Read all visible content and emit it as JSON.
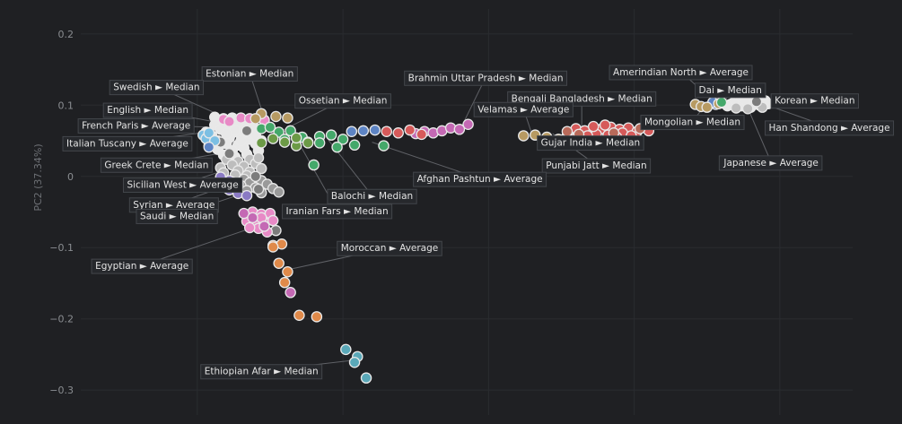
{
  "chart_data": {
    "type": "scatter",
    "ylabel": "PC2 (37.34%)",
    "ylim": [
      -0.335,
      0.235
    ],
    "xlim": [
      -0.14,
      0.125
    ],
    "grid": true,
    "y_ticks": [
      {
        "value": 0.2,
        "label": "0.2"
      },
      {
        "value": 0.1,
        "label": "0.1"
      },
      {
        "value": 0,
        "label": "0"
      },
      {
        "value": -0.1,
        "label": "−0.1"
      },
      {
        "value": -0.2,
        "label": "−0.2"
      },
      {
        "value": -0.3,
        "label": "−0.3"
      }
    ],
    "x_grid": [
      -0.1,
      -0.05,
      0,
      0.05,
      0.1
    ],
    "colors": {
      "background": "#1f2023",
      "grid": "#2a2c30",
      "white": "#e8e8e8",
      "light_gray": "#bdbdbd",
      "gray": "#9a9a9a",
      "dark_gray": "#7c7c7c",
      "pink": "#e88ac6",
      "magenta": "#c469b4",
      "purple": "#8a7ac4",
      "blue": "#5d84c4",
      "light_blue": "#7cbfe3",
      "teal": "#5aa8b8",
      "green": "#44a86a",
      "olive_green": "#6c9a46",
      "tan": "#b79a62",
      "orange": "#e08a4a",
      "red": "#d65a5a",
      "brown": "#b86a5a"
    },
    "clusters": [
      {
        "color": "white",
        "points": [
          [
            -0.094,
            0.083
          ],
          [
            -0.091,
            0.081
          ],
          [
            -0.088,
            0.082
          ],
          [
            -0.085,
            0.08
          ],
          [
            -0.091,
            0.076
          ],
          [
            -0.087,
            0.077
          ],
          [
            -0.094,
            0.072
          ],
          [
            -0.089,
            0.07
          ],
          [
            -0.083,
            0.078
          ],
          [
            -0.086,
            0.073
          ],
          [
            -0.092,
            0.066
          ],
          [
            -0.088,
            0.061
          ],
          [
            -0.095,
            0.057
          ],
          [
            -0.093,
            0.05
          ],
          [
            -0.089,
            0.054
          ],
          [
            -0.085,
            0.058
          ],
          [
            -0.082,
            0.052
          ],
          [
            -0.09,
            0.046
          ],
          [
            -0.086,
            0.044
          ],
          [
            -0.093,
            0.038
          ],
          [
            -0.088,
            0.036
          ],
          [
            -0.084,
            0.04
          ],
          [
            -0.08,
            0.046
          ],
          [
            -0.091,
            0.03
          ],
          [
            -0.087,
            0.027
          ],
          [
            -0.083,
            0.031
          ],
          [
            -0.079,
            0.036
          ],
          [
            -0.096,
            0.043
          ],
          [
            -0.097,
            0.062
          ],
          [
            -0.081,
            0.072
          ],
          [
            -0.087,
            0.065
          ],
          [
            -0.084,
            0.065
          ],
          [
            -0.09,
            0.06
          ],
          [
            -0.092,
            0.045
          ],
          [
            -0.085,
            0.05
          ],
          [
            -0.082,
            0.06
          ],
          [
            -0.08,
            0.058
          ],
          [
            -0.078,
            0.05
          ]
        ]
      },
      {
        "color": "light_gray",
        "points": [
          [
            -0.09,
            0.024
          ],
          [
            -0.086,
            0.021
          ],
          [
            -0.082,
            0.024
          ],
          [
            -0.088,
            0.016
          ],
          [
            -0.084,
            0.014
          ],
          [
            -0.08,
            0.018
          ],
          [
            -0.086,
            0.008
          ],
          [
            -0.082,
            0.006
          ],
          [
            -0.078,
            0.011
          ],
          [
            -0.092,
            0.012
          ],
          [
            -0.079,
            0.026
          ],
          [
            -0.083,
            0.001
          ],
          [
            -0.087,
            0.002
          ],
          [
            -0.091,
            0.005
          ]
        ]
      },
      {
        "color": "gray",
        "points": [
          [
            -0.084,
            -0.004
          ],
          [
            -0.08,
            -0.001
          ],
          [
            -0.082,
            -0.009
          ],
          [
            -0.078,
            -0.006
          ],
          [
            -0.085,
            -0.013
          ],
          [
            -0.08,
            -0.016
          ],
          [
            -0.076,
            -0.011
          ],
          [
            -0.083,
            -0.02
          ],
          [
            -0.078,
            -0.023
          ],
          [
            -0.074,
            -0.017
          ],
          [
            -0.072,
            -0.022
          ],
          [
            -0.088,
            -0.008
          ],
          [
            -0.09,
            -0.016
          ]
        ]
      },
      {
        "color": "dark_gray",
        "points": [
          [
            -0.089,
            0.032
          ],
          [
            -0.092,
            0.048
          ],
          [
            -0.08,
            0.0
          ],
          [
            -0.079,
            -0.018
          ],
          [
            -0.073,
            -0.076
          ],
          [
            -0.083,
            0.064
          ]
        ]
      },
      {
        "color": "light_blue",
        "points": [
          [
            -0.098,
            0.058
          ],
          [
            -0.097,
            0.053
          ],
          [
            -0.096,
            0.061
          ],
          [
            -0.094,
            0.05
          ]
        ]
      },
      {
        "color": "blue",
        "points": [
          [
            -0.096,
            0.041
          ],
          [
            -0.047,
            0.063
          ],
          [
            -0.043,
            0.064
          ],
          [
            -0.039,
            0.065
          ],
          [
            0.078,
            0.101
          ],
          [
            0.08,
            0.103
          ],
          [
            0.077,
            0.104
          ]
        ]
      },
      {
        "color": "pink",
        "points": [
          [
            -0.091,
            0.08
          ],
          [
            -0.089,
            0.077
          ],
          [
            -0.085,
            0.082
          ],
          [
            -0.082,
            0.081
          ],
          [
            -0.077,
            0.079
          ],
          [
            -0.081,
            -0.05
          ],
          [
            -0.078,
            -0.053
          ],
          [
            -0.075,
            -0.052
          ],
          [
            -0.083,
            -0.063
          ],
          [
            -0.08,
            -0.067
          ],
          [
            -0.077,
            -0.065
          ],
          [
            -0.079,
            -0.073
          ],
          [
            -0.076,
            -0.078
          ],
          [
            -0.082,
            -0.072
          ],
          [
            -0.074,
            -0.062
          ],
          [
            -0.078,
            -0.058
          ]
        ]
      },
      {
        "color": "magenta",
        "points": [
          [
            -0.084,
            -0.052
          ],
          [
            -0.081,
            -0.058
          ],
          [
            -0.077,
            -0.07
          ],
          [
            -0.025,
            0.06
          ],
          [
            -0.022,
            0.063
          ],
          [
            -0.019,
            0.061
          ],
          [
            -0.016,
            0.064
          ],
          [
            -0.013,
            0.068
          ],
          [
            -0.01,
            0.066
          ],
          [
            -0.007,
            0.073
          ],
          [
            -0.068,
            -0.163
          ]
        ]
      },
      {
        "color": "purple",
        "points": [
          [
            -0.092,
            -0.001
          ],
          [
            -0.089,
            -0.006
          ],
          [
            -0.086,
            -0.011
          ],
          [
            -0.089,
            -0.019
          ],
          [
            -0.086,
            -0.024
          ],
          [
            -0.093,
            -0.014
          ],
          [
            -0.083,
            -0.027
          ]
        ]
      },
      {
        "color": "teal",
        "points": [
          [
            -0.049,
            -0.243
          ],
          [
            -0.045,
            -0.253
          ],
          [
            -0.046,
            -0.261
          ],
          [
            -0.042,
            -0.283
          ]
        ]
      },
      {
        "color": "green",
        "points": [
          [
            -0.078,
            0.067
          ],
          [
            -0.075,
            0.069
          ],
          [
            -0.072,
            0.062
          ],
          [
            -0.068,
            0.064
          ],
          [
            -0.064,
            0.055
          ],
          [
            -0.07,
            0.052
          ],
          [
            -0.058,
            0.056
          ],
          [
            -0.054,
            0.058
          ],
          [
            -0.05,
            0.052
          ],
          [
            -0.046,
            0.044
          ],
          [
            -0.052,
            0.041
          ],
          [
            -0.058,
            0.047
          ],
          [
            -0.062,
            0.048
          ],
          [
            -0.06,
            0.016
          ],
          [
            -0.036,
            0.043
          ]
        ]
      },
      {
        "color": "olive_green",
        "points": [
          [
            -0.074,
            0.053
          ],
          [
            -0.07,
            0.048
          ],
          [
            -0.066,
            0.043
          ],
          [
            -0.062,
            0.047
          ],
          [
            -0.066,
            0.054
          ],
          [
            -0.078,
            0.047
          ]
        ]
      },
      {
        "color": "tan",
        "points": [
          [
            -0.078,
            0.088
          ],
          [
            -0.073,
            0.084
          ],
          [
            -0.069,
            0.082
          ],
          [
            -0.08,
            0.081
          ],
          [
            0.012,
            0.057
          ],
          [
            0.016,
            0.058
          ],
          [
            0.02,
            0.055
          ],
          [
            0.024,
            0.052
          ],
          [
            0.027,
            0.057
          ],
          [
            0.071,
            0.101
          ],
          [
            0.073,
            0.098
          ],
          [
            0.075,
            0.097
          ],
          [
            0.079,
            0.102
          ]
        ]
      },
      {
        "color": "orange",
        "points": [
          [
            -0.074,
            -0.097
          ],
          [
            -0.071,
            -0.095
          ],
          [
            -0.074,
            -0.099
          ],
          [
            -0.072,
            -0.122
          ],
          [
            -0.069,
            -0.134
          ],
          [
            -0.07,
            -0.149
          ],
          [
            -0.065,
            -0.195
          ],
          [
            -0.059,
            -0.197
          ]
        ]
      },
      {
        "color": "red",
        "points": [
          [
            -0.035,
            0.063
          ],
          [
            -0.031,
            0.061
          ],
          [
            -0.027,
            0.065
          ],
          [
            -0.023,
            0.059
          ],
          [
            0.03,
            0.067
          ],
          [
            0.033,
            0.064
          ],
          [
            0.036,
            0.062
          ],
          [
            0.039,
            0.067
          ],
          [
            0.042,
            0.069
          ],
          [
            0.045,
            0.066
          ],
          [
            0.048,
            0.068
          ],
          [
            0.051,
            0.063
          ],
          [
            0.055,
            0.064
          ],
          [
            0.037,
            0.059
          ],
          [
            0.041,
            0.058
          ],
          [
            0.046,
            0.061
          ],
          [
            0.034,
            0.057
          ],
          [
            0.03,
            0.054
          ],
          [
            0.044,
            0.055
          ],
          [
            0.049,
            0.057
          ],
          [
            0.04,
            0.072
          ],
          [
            0.036,
            0.07
          ]
        ]
      },
      {
        "color": "brown",
        "points": [
          [
            0.027,
            0.063
          ],
          [
            0.031,
            0.059
          ],
          [
            0.043,
            0.061
          ],
          [
            0.052,
            0.067
          ]
        ]
      },
      {
        "color": "white",
        "points": [
          [
            0.083,
            0.101
          ],
          [
            0.086,
            0.104
          ],
          [
            0.089,
            0.106
          ],
          [
            0.092,
            0.103
          ],
          [
            0.095,
            0.106
          ],
          [
            0.087,
            0.099
          ],
          [
            0.09,
            0.097
          ],
          [
            0.093,
            0.1
          ],
          [
            0.096,
            0.102
          ],
          [
            0.084,
            0.103
          ],
          [
            0.091,
            0.108
          ],
          [
            0.088,
            0.108
          ],
          [
            0.082,
            0.099
          ]
        ]
      },
      {
        "color": "light_gray",
        "points": [
          [
            0.085,
            0.096
          ],
          [
            0.089,
            0.095
          ],
          [
            0.094,
            0.097
          ]
        ]
      },
      {
        "color": "green",
        "points": [
          [
            0.08,
            0.104
          ]
        ]
      },
      {
        "color": "dark_gray",
        "points": [
          [
            0.092,
            0.105
          ]
        ]
      }
    ],
    "annotations": [
      {
        "text": "Estonian ► Median",
        "x": -0.077,
        "y": 0.082,
        "lx": -0.082,
        "ly": 0.145
      },
      {
        "text": "Swedish ► Median",
        "x": -0.089,
        "y": 0.08,
        "lx": -0.114,
        "ly": 0.126
      },
      {
        "text": "English ► Median",
        "x": -0.092,
        "y": 0.075,
        "lx": -0.117,
        "ly": 0.094
      },
      {
        "text": "French Paris ► Average",
        "x": -0.094,
        "y": 0.069,
        "lx": -0.121,
        "ly": 0.072
      },
      {
        "text": "Italian Tuscany ► Average",
        "x": -0.097,
        "y": 0.062,
        "lx": -0.124,
        "ly": 0.047
      },
      {
        "text": "Greek Crete ► Median",
        "x": -0.091,
        "y": 0.033,
        "lx": -0.114,
        "ly": 0.017
      },
      {
        "text": "Sicilian West ► Average",
        "x": -0.086,
        "y": 0.015,
        "lx": -0.105,
        "ly": -0.011
      },
      {
        "text": "Syrian ► Average",
        "x": -0.089,
        "y": -0.012,
        "lx": -0.108,
        "ly": -0.039
      },
      {
        "text": "Saudi ► Median",
        "x": -0.085,
        "y": -0.025,
        "lx": -0.107,
        "ly": -0.055
      },
      {
        "text": "Ossetian ► Median",
        "x": -0.073,
        "y": 0.06,
        "lx": -0.05,
        "ly": 0.107
      },
      {
        "text": "Brahmin Uttar Pradesh ► Median",
        "x": -0.009,
        "y": 0.072,
        "lx": -0.001,
        "ly": 0.139
      },
      {
        "text": "Bengali Bangladesh ► Median",
        "x": 0.032,
        "y": 0.066,
        "lx": 0.032,
        "ly": 0.11
      },
      {
        "text": "Velamas ► Average",
        "x": 0.015,
        "y": 0.058,
        "lx": 0.012,
        "ly": 0.095
      },
      {
        "text": "Gujar India ► Median",
        "x": 0.037,
        "y": 0.058,
        "lx": 0.035,
        "ly": 0.048
      },
      {
        "text": "Punjabi Jatt ► Median",
        "x": 0.022,
        "y": 0.06,
        "lx": 0.037,
        "ly": 0.016
      },
      {
        "text": "Afghan Pashtun ► Average",
        "x": -0.04,
        "y": 0.048,
        "lx": -0.003,
        "ly": -0.003
      },
      {
        "text": "Balochi ► Median",
        "x": -0.055,
        "y": 0.051,
        "lx": -0.04,
        "ly": -0.027
      },
      {
        "text": "Iranian Fars ► Median",
        "x": -0.065,
        "y": 0.046,
        "lx": -0.052,
        "ly": -0.048
      },
      {
        "text": "Amerindian North ► Average",
        "x": 0.078,
        "y": 0.103,
        "lx": 0.066,
        "ly": 0.147
      },
      {
        "text": "Dai ► Median",
        "x": 0.081,
        "y": 0.102,
        "lx": 0.083,
        "ly": 0.122
      },
      {
        "text": "Mongolian ► Median",
        "x": 0.074,
        "y": 0.098,
        "lx": 0.07,
        "ly": 0.077
      },
      {
        "text": "Korean ► Median",
        "x": 0.093,
        "y": 0.106,
        "lx": 0.112,
        "ly": 0.107
      },
      {
        "text": "Han Shandong ► Average",
        "x": 0.095,
        "y": 0.101,
        "lx": 0.117,
        "ly": 0.069
      },
      {
        "text": "Japanese ► Average",
        "x": 0.089,
        "y": 0.096,
        "lx": 0.097,
        "ly": 0.02
      },
      {
        "text": "Egyptian ► Average",
        "x": -0.081,
        "y": -0.072,
        "lx": -0.119,
        "ly": -0.125
      },
      {
        "text": "Moroccan ► Average",
        "x": -0.07,
        "y": -0.132,
        "lx": -0.034,
        "ly": -0.1
      },
      {
        "text": "Ethiopian Afar ► Median",
        "x": -0.046,
        "y": -0.258,
        "lx": -0.078,
        "ly": -0.273
      }
    ]
  }
}
